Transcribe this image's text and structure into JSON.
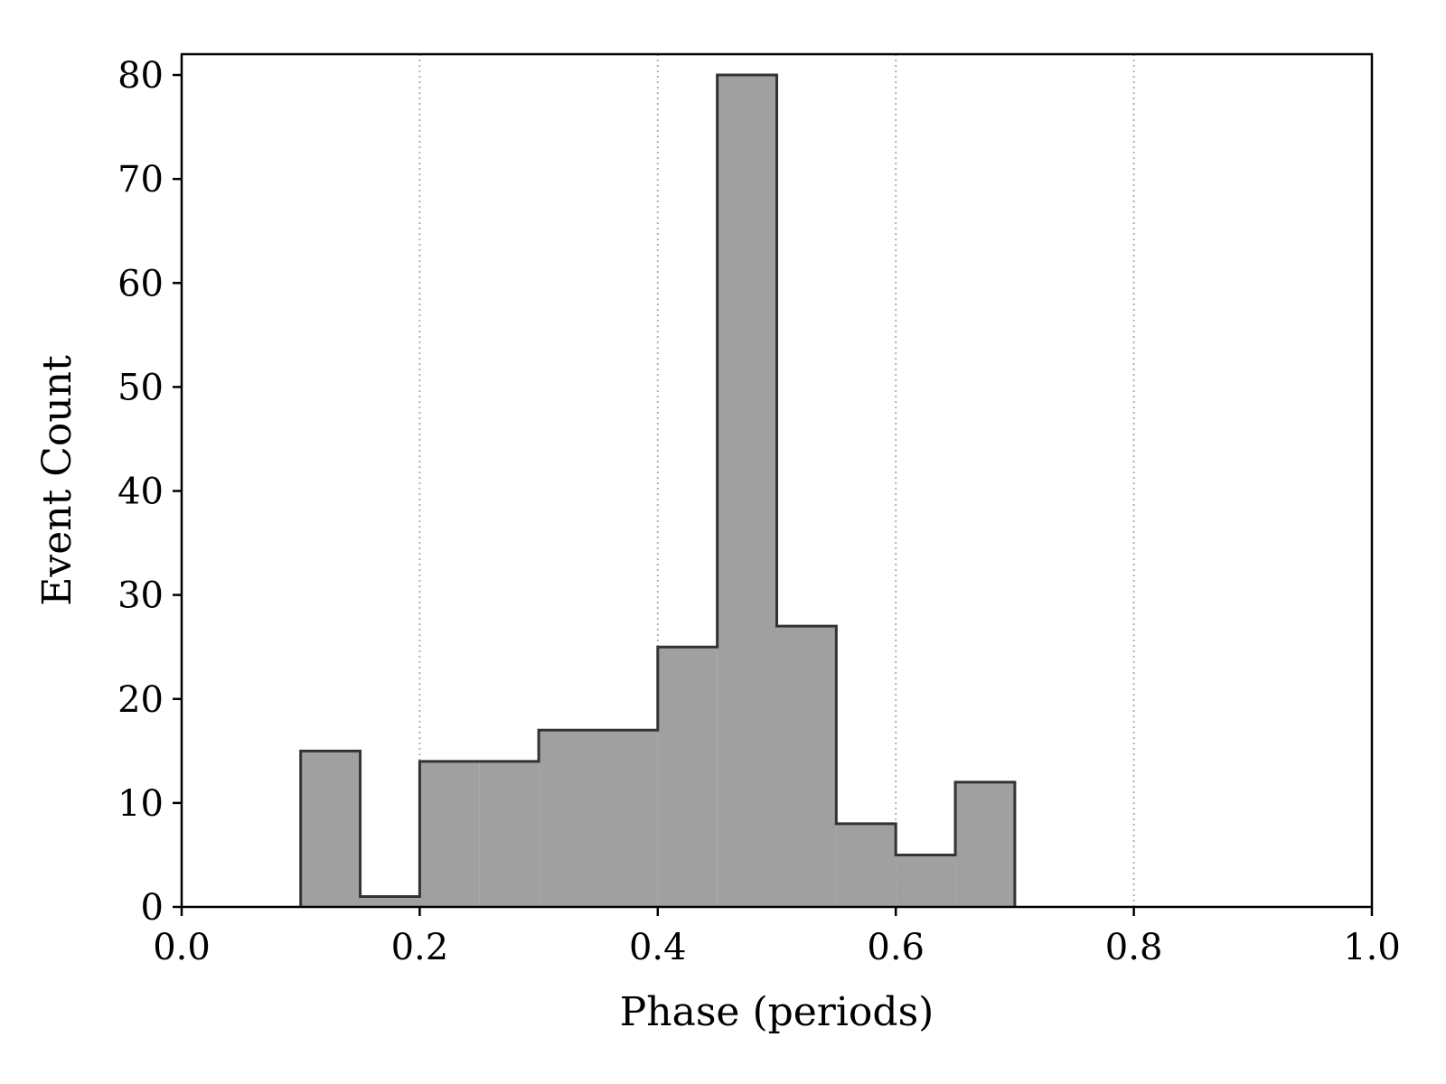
{
  "chart_data": {
    "type": "histogram",
    "title": "",
    "xlabel": "Phase (periods)",
    "ylabel": "Event Count",
    "xlim": [
      0.0,
      1.0
    ],
    "ylim": [
      0,
      82
    ],
    "bin_edges": [
      0.1,
      0.15,
      0.2,
      0.25,
      0.3,
      0.35,
      0.4,
      0.45,
      0.5,
      0.55,
      0.6,
      0.65,
      0.7
    ],
    "counts": [
      15,
      1,
      14,
      14,
      17,
      17,
      25,
      80,
      27,
      8,
      5,
      12
    ],
    "x_ticks": [
      0.0,
      0.2,
      0.4,
      0.6,
      0.8,
      1.0
    ],
    "x_tick_labels": [
      "0.0",
      "0.2",
      "0.4",
      "0.6",
      "0.8",
      "1.0"
    ],
    "y_ticks": [
      0,
      10,
      20,
      30,
      40,
      50,
      60,
      70,
      80
    ],
    "y_tick_labels": [
      "0",
      "10",
      "20",
      "30",
      "40",
      "50",
      "60",
      "70",
      "80"
    ],
    "grid": "vertical dotted at x ticks",
    "colors": {
      "fill": "#a0a0a0",
      "edge": "#333333",
      "grid": "#b0b0b0",
      "axes": "#000000"
    }
  }
}
